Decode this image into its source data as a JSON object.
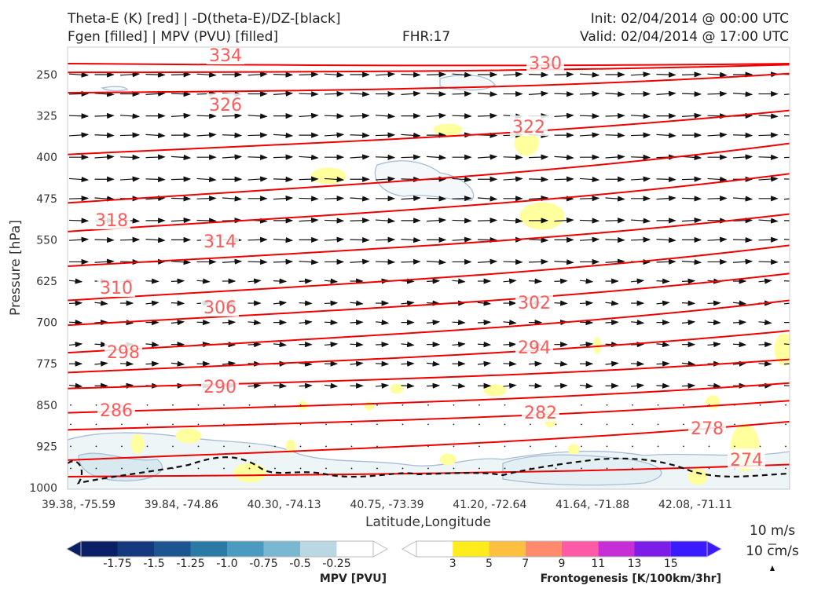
{
  "header": {
    "line1_left": "Theta-E (K) [red] | -D(theta-E)/DZ-[black]",
    "line2_left": "Fgen [filled] | MPV (PVU) [filled]",
    "fhr": "FHR:17",
    "init": "Init: 02/04/2014 @ 00:00 UTC",
    "valid": "Valid: 02/04/2014 @ 17:00 UTC"
  },
  "chart_data": {
    "type": "cross-section",
    "ylabel": "Pressure [hPa]",
    "xlabel": "Latitude,Longitude",
    "y_ticks": [
      "250",
      "325",
      "400",
      "475",
      "550",
      "625",
      "700",
      "775",
      "850",
      "925",
      "1000"
    ],
    "x_ticks": [
      "39.38, -75.59",
      "39.84, -74.86",
      "40.30, -74.13",
      "40.75, -73.39",
      "41.20, -72.64",
      "41.64, -71.88",
      "42.08, -71.11"
    ],
    "theta_e_contours": [
      {
        "label": "334",
        "p": [
          230,
          230
        ]
      },
      {
        "label": "330",
        "p": [
          246,
          232
        ]
      },
      {
        "label": "326",
        "p": [
          283,
          248
        ]
      },
      {
        "label": "322",
        "p": [
          395,
          315
        ]
      },
      {
        "label": "318",
        "p": [
          483,
          375
        ]
      },
      {
        "label": "314",
        "p": [
          535,
          430
        ]
      },
      {
        "label": "310",
        "p": [
          598,
          503
        ]
      },
      {
        "label": "306",
        "p": [
          660,
          560
        ]
      },
      {
        "label": "302",
        "p": [
          705,
          611
        ]
      },
      {
        "label": "298",
        "p": [
          755,
          660
        ]
      },
      {
        "label": "294",
        "p": [
          791,
          715
        ]
      },
      {
        "label": "290",
        "p": [
          820,
          767
        ]
      },
      {
        "label": "286",
        "p": [
          864,
          810
        ]
      },
      {
        "label": "282",
        "p": [
          895,
          842
        ]
      },
      {
        "label": "278",
        "p": [
          950,
          880
        ]
      },
      {
        "label": "274",
        "p": [
          980,
          958
        ]
      }
    ],
    "wind_rows_hpa": [
      250,
      285,
      325,
      360,
      400,
      440,
      475,
      515,
      550,
      590,
      625,
      665,
      700,
      740,
      775,
      815,
      850,
      885,
      925,
      965
    ],
    "reference_vectors": {
      "horizontal": "10 m/s",
      "vertical": "10 cm/s"
    },
    "colorbars": [
      {
        "title": "MPV [PVU]",
        "ticks": [
          "-1.75",
          "-1.5",
          "-1.25",
          "-1.0",
          "-0.75",
          "-0.5",
          "-0.25"
        ],
        "colors": [
          "#0a1f66",
          "#14397f",
          "#1d5590",
          "#2a7aa6",
          "#4a9bbf",
          "#7ab8d1",
          "#b9d8e4",
          "#ffffff"
        ]
      },
      {
        "title": "Frontogenesis [K/100km/3hr]",
        "ticks": [
          "3",
          "5",
          "7",
          "9",
          "11",
          "13",
          "15"
        ],
        "colors": [
          "#ffffff",
          "#ffec1a",
          "#ffc040",
          "#ff8a6e",
          "#ff5aa8",
          "#c62ed6",
          "#7d1ee8",
          "#3a1aff"
        ]
      }
    ]
  }
}
